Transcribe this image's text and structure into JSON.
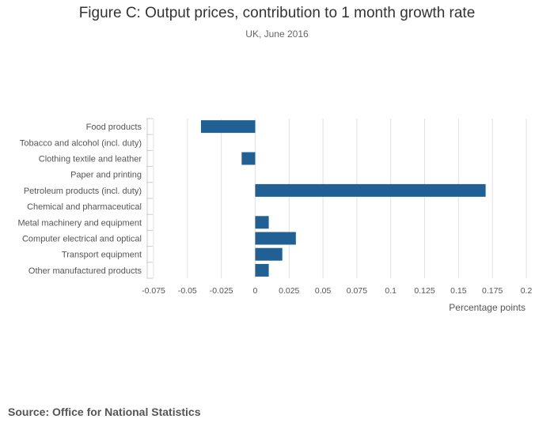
{
  "title": "Figure C: Output prices, contribution to 1 month growth rate",
  "subtitle": "UK, June 2016",
  "source": "Source: Office for National Statistics",
  "colors": {
    "bar": "#206095",
    "grid": "#e0e0e0",
    "axis": "#cccccc",
    "text": "#555555"
  },
  "chart_data": {
    "type": "bar",
    "orientation": "horizontal",
    "title": "Figure C: Output prices, contribution to 1 month growth rate",
    "subtitle": "UK, June 2016",
    "xlabel": "Percentage points",
    "ylabel": "",
    "xlim": [
      -0.075,
      0.2
    ],
    "xticks": [
      -0.075,
      -0.05,
      -0.025,
      0,
      0.025,
      0.05,
      0.075,
      0.1,
      0.125,
      0.15,
      0.175,
      0.2
    ],
    "xtick_labels": [
      "-0.075",
      "-0.05",
      "-0.025",
      "0",
      "0.025",
      "0.05",
      "0.075",
      "0.1",
      "0.125",
      "0.15",
      "0.175",
      "0.2"
    ],
    "grid": true,
    "categories": [
      "Food products",
      "Tobacco and alcohol (incl. duty)",
      "Clothing textile and leather",
      "Paper and printing",
      "Petroleum products (incl. duty)",
      "Chemical and pharmaceutical",
      "Metal machinery and equipment",
      "Computer electrical and optical",
      "Transport equipment",
      "Other manufactured products"
    ],
    "values": [
      -0.04,
      0,
      -0.01,
      0,
      0.17,
      0,
      0.01,
      0.03,
      0.02,
      0.01
    ]
  }
}
